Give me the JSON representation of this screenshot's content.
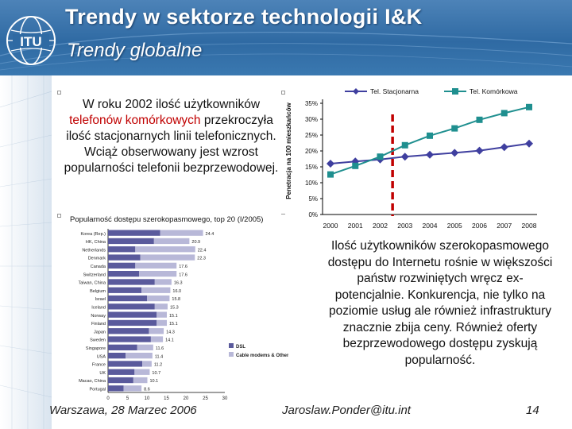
{
  "slide": {
    "title": "Trendy w sektorze technologii I&K",
    "subtitle": "Trendy globalne",
    "logo_text": "ITU"
  },
  "left_text": {
    "part1": "W roku 2002 ilość użytkowników",
    "part2_red": "telefonów komórkowych",
    "part3": "przekroczyła ilość stacjonarnych linii telefonicznych. Wciąż obserwowany jest wzrost popularności telefonii bezprzewodowej."
  },
  "right_text": "Ilość użytkowników szerokopasmowego dostępu do Internetu rośnie w większości państw rozwiniętych wręcz ex-potencjalnie.  Konkurencja, nie tylko na poziomie usług ale również infrastruktury znacznie zbija ceny. Również oferty bezprzewodowego dostępu zyskują popularność.",
  "footer": {
    "date": "Warszawa, 28 Marzec 2006",
    "author": "Jaroslaw.Ponder@itu.int",
    "page": "14"
  },
  "colors": {
    "header": "#2f6aa3",
    "fixed_series": "#3f3f9f",
    "mobile_series": "#1f8f8f",
    "marker_line": "#c00000"
  },
  "chart_data": [
    {
      "type": "line",
      "x": [
        2000,
        2001,
        2002,
        2003,
        2004,
        2005,
        2006,
        2007,
        2008
      ],
      "series": [
        {
          "name": "Tel. Stacjonarna",
          "values": [
            16,
            16.7,
            17.3,
            18.2,
            18.8,
            19.4,
            20.1,
            21.2,
            22.3
          ]
        },
        {
          "name": "Tel. Komórkowa",
          "values": [
            12.6,
            15.3,
            18.2,
            21.8,
            24.8,
            27.1,
            29.8,
            31.9,
            33.8
          ]
        }
      ],
      "ylabel": "Penetracja na 100 mieszkańców",
      "yticks": [
        "0%",
        "5%",
        "10%",
        "15%",
        "20%",
        "25%",
        "30%",
        "35%"
      ],
      "ylim": [
        0,
        35
      ],
      "x_tick_labels": [
        "2000",
        "2001",
        "2002",
        "2003",
        "2004",
        "2005",
        "2006",
        "2007",
        "2008"
      ],
      "marker_at": 2002.5,
      "legend": "top"
    },
    {
      "type": "bar",
      "title": "Popularność dostępu szerokopasmowego, top 20 (I/2005)",
      "categories": [
        "Korea (Rep.)",
        "HK, China",
        "Netherlands",
        "Denmark",
        "Canada",
        "Switzerland",
        "Taiwan, China",
        "Belgium",
        "Israel",
        "Iceland",
        "Norway",
        "Finland",
        "Japan",
        "Sweden",
        "Singapore",
        "USA",
        "France",
        "UK",
        "Macao, China",
        "Portugal"
      ],
      "series": [
        {
          "name": "DSL",
          "values": [
            13.4,
            11.8,
            7.0,
            8.3,
            7.0,
            8.0,
            12.0,
            8.6,
            10.0,
            12.0,
            12.5,
            12.5,
            10.5,
            11.0,
            7.5,
            4.5,
            8.8,
            6.8,
            6.5,
            4.0
          ]
        },
        {
          "name": "Cable modems & Other",
          "values": [
            11.0,
            9.1,
            15.4,
            14.0,
            10.6,
            9.6,
            4.3,
            7.4,
            5.8,
            3.3,
            2.6,
            2.6,
            3.8,
            3.1,
            4.1,
            6.9,
            2.4,
            3.9,
            3.6,
            4.6
          ]
        }
      ],
      "totals": [
        "24.4",
        "20.9",
        "22.4",
        "22.3",
        "17.6",
        "17.6",
        "16.3",
        "16.0",
        "15.8",
        "15.3",
        "15.1",
        "15.1",
        "14.3",
        "14.1",
        "11.6",
        "11.4",
        "11.2",
        "10.7",
        "10.1",
        "8.6"
      ],
      "xticks": [
        "0",
        "5",
        "10",
        "15",
        "20",
        "25",
        "30"
      ],
      "xlim": [
        0,
        30
      ],
      "legend": "right"
    }
  ]
}
